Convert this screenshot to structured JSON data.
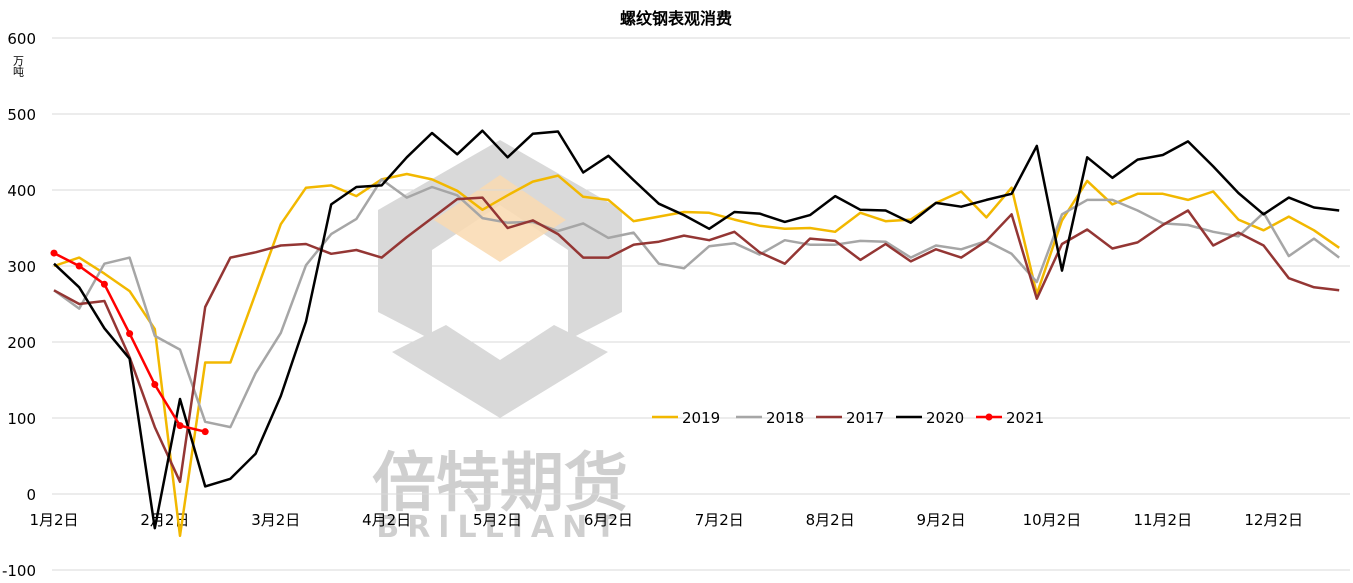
{
  "chart_data": {
    "type": "line",
    "title": "螺纹钢表观消费",
    "ylabel": "万吨",
    "ylim": [
      -100,
      600
    ],
    "yticks": [
      -100,
      0,
      100,
      200,
      300,
      400,
      500,
      600
    ],
    "x_tick_labels": [
      "1月2日",
      "2月2日",
      "3月2日",
      "4月2日",
      "5月2日",
      "6月2日",
      "7月2日",
      "8月2日",
      "9月2日",
      "10月2日",
      "11月2日",
      "12月2日"
    ],
    "grid": "horizontal",
    "legend_position": "center-right",
    "watermark": {
      "text": "倍特期货",
      "subtext": "BRILLIANT"
    },
    "series": [
      {
        "name": "2019",
        "color": "#F2B800",
        "values": [
          300,
          311,
          290,
          267,
          217,
          -55,
          173,
          173,
          264,
          355,
          403,
          406,
          392,
          414,
          421,
          414,
          399,
          374,
          393,
          411,
          419,
          391,
          387,
          359,
          365,
          371,
          370,
          361,
          353,
          349,
          350,
          345,
          370,
          359,
          361,
          383,
          398,
          364,
          403,
          263,
          360,
          412,
          381,
          395,
          395,
          387,
          398,
          361,
          347,
          365,
          347,
          324
        ]
      },
      {
        "name": "2018",
        "color": "#A6A6A6",
        "values": [
          268,
          244,
          303,
          311,
          208,
          190,
          95,
          88,
          159,
          212,
          301,
          342,
          362,
          414,
          390,
          404,
          393,
          363,
          357,
          358,
          346,
          356,
          337,
          344,
          303,
          297,
          326,
          330,
          315,
          334,
          328,
          328,
          333,
          332,
          311,
          327,
          322,
          333,
          316,
          279,
          368,
          387,
          387,
          373,
          356,
          354,
          345,
          339,
          370,
          313,
          336,
          311
        ]
      },
      {
        "name": "2017",
        "color": "#943634",
        "values": [
          268,
          250,
          254,
          180,
          88,
          16,
          246,
          311,
          318,
          327,
          329,
          316,
          321,
          311,
          338,
          363,
          388,
          390,
          350,
          360,
          342,
          311,
          311,
          328,
          332,
          340,
          334,
          345,
          318,
          303,
          336,
          333,
          308,
          329,
          306,
          322,
          311,
          333,
          368,
          257,
          329,
          348,
          323,
          331,
          354,
          373,
          327,
          344,
          327,
          284,
          272,
          268
        ]
      },
      {
        "name": "2020",
        "color": "#000000",
        "values": [
          303,
          272,
          218,
          178,
          -45,
          125,
          10,
          20,
          53,
          129,
          227,
          381,
          404,
          406,
          443,
          475,
          447,
          478,
          443,
          474,
          477,
          423,
          445,
          413,
          382,
          367,
          349,
          371,
          369,
          358,
          367,
          392,
          374,
          373,
          357,
          383,
          378,
          387,
          395,
          458,
          294,
          443,
          416,
          440,
          446,
          464,
          431,
          396,
          368,
          390,
          377,
          373
        ]
      },
      {
        "name": "2021",
        "color": "#FF0000",
        "values": [
          317,
          300,
          276,
          211,
          144,
          90,
          82
        ]
      }
    ]
  }
}
